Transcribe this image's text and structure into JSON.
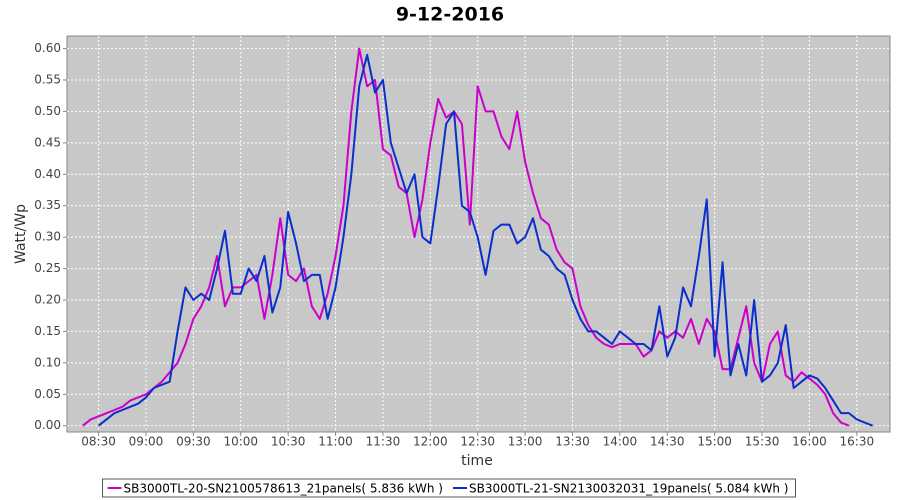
{
  "chart_data": {
    "type": "line",
    "title": "9-12-2016",
    "x_label": "time",
    "y_label": "Watt/Wp",
    "x": [
      "08:20",
      "08:25",
      "08:30",
      "08:35",
      "08:40",
      "08:45",
      "08:50",
      "08:55",
      "09:00",
      "09:05",
      "09:10",
      "09:15",
      "09:20",
      "09:25",
      "09:30",
      "09:35",
      "09:40",
      "09:45",
      "09:50",
      "09:55",
      "10:00",
      "10:05",
      "10:10",
      "10:15",
      "10:20",
      "10:25",
      "10:30",
      "10:35",
      "10:40",
      "10:45",
      "10:50",
      "10:55",
      "11:00",
      "11:05",
      "11:10",
      "11:15",
      "11:20",
      "11:25",
      "11:30",
      "11:35",
      "11:40",
      "11:45",
      "11:50",
      "11:55",
      "12:00",
      "12:05",
      "12:10",
      "12:15",
      "12:20",
      "12:25",
      "12:30",
      "12:35",
      "12:40",
      "12:45",
      "12:50",
      "12:55",
      "13:00",
      "13:05",
      "13:10",
      "13:15",
      "13:20",
      "13:25",
      "13:30",
      "13:35",
      "13:40",
      "13:45",
      "13:50",
      "13:55",
      "14:00",
      "14:05",
      "14:10",
      "14:15",
      "14:20",
      "14:25",
      "14:30",
      "14:35",
      "14:40",
      "14:45",
      "14:50",
      "14:55",
      "15:00",
      "15:05",
      "15:10",
      "15:15",
      "15:20",
      "15:25",
      "15:30",
      "15:35",
      "15:40",
      "15:45",
      "15:50",
      "15:55",
      "16:00",
      "16:05",
      "16:10",
      "16:15",
      "16:20",
      "16:25",
      "16:30",
      "16:35",
      "16:40"
    ],
    "series": [
      {
        "name": "SB3000TL-20-SN2100578613_21panels( 5.836 kWh )",
        "color": "#cc00cc",
        "values": [
          0.0,
          0.01,
          0.015,
          0.02,
          0.025,
          0.03,
          0.04,
          0.045,
          0.05,
          0.06,
          0.07,
          0.085,
          0.1,
          0.13,
          0.17,
          0.19,
          0.22,
          0.27,
          0.19,
          0.22,
          0.22,
          0.23,
          0.24,
          0.17,
          0.24,
          0.33,
          0.24,
          0.23,
          0.25,
          0.19,
          0.17,
          0.21,
          0.27,
          0.35,
          0.5,
          0.6,
          0.54,
          0.55,
          0.44,
          0.43,
          0.38,
          0.37,
          0.3,
          0.36,
          0.45,
          0.52,
          0.49,
          0.5,
          0.48,
          0.32,
          0.54,
          0.5,
          0.5,
          0.46,
          0.44,
          0.5,
          0.42,
          0.37,
          0.33,
          0.32,
          0.28,
          0.26,
          0.25,
          0.19,
          0.16,
          0.14,
          0.13,
          0.125,
          0.13,
          0.13,
          0.13,
          0.11,
          0.12,
          0.15,
          0.14,
          0.15,
          0.14,
          0.17,
          0.13,
          0.17,
          0.15,
          0.09,
          0.09,
          0.14,
          0.19,
          0.1,
          0.07,
          0.13,
          0.15,
          0.08,
          0.07,
          0.085,
          0.075,
          0.065,
          0.05,
          0.02,
          0.005,
          0.0,
          null,
          null,
          null
        ]
      },
      {
        "name": "SB3000TL-21-SN2130032031_19panels( 5.084 kWh )",
        "color": "#0a2fcc",
        "values": [
          null,
          null,
          0.0,
          0.01,
          0.02,
          0.025,
          0.03,
          0.035,
          0.045,
          0.06,
          0.065,
          0.07,
          0.15,
          0.22,
          0.2,
          0.21,
          0.2,
          0.25,
          0.31,
          0.21,
          0.21,
          0.25,
          0.23,
          0.27,
          0.18,
          0.22,
          0.34,
          0.29,
          0.23,
          0.24,
          0.24,
          0.17,
          0.22,
          0.3,
          0.4,
          0.54,
          0.59,
          0.53,
          0.55,
          0.45,
          0.41,
          0.37,
          0.4,
          0.3,
          0.29,
          0.38,
          0.48,
          0.5,
          0.35,
          0.34,
          0.3,
          0.24,
          0.31,
          0.32,
          0.32,
          0.29,
          0.3,
          0.33,
          0.28,
          0.27,
          0.25,
          0.24,
          0.2,
          0.17,
          0.15,
          0.15,
          0.14,
          0.13,
          0.15,
          0.14,
          0.13,
          0.13,
          0.12,
          0.19,
          0.11,
          0.14,
          0.22,
          0.19,
          0.27,
          0.36,
          0.11,
          0.26,
          0.08,
          0.13,
          0.08,
          0.2,
          0.07,
          0.08,
          0.1,
          0.16,
          0.06,
          0.07,
          0.08,
          0.075,
          0.06,
          0.04,
          0.02,
          0.02,
          0.01,
          0.005,
          0.0
        ]
      }
    ],
    "xlim": [
      "08:10",
      "16:51"
    ],
    "xticks": [
      "08:30",
      "09:00",
      "09:30",
      "10:00",
      "10:30",
      "11:00",
      "11:30",
      "12:00",
      "12:30",
      "13:00",
      "13:30",
      "14:00",
      "14:30",
      "15:00",
      "15:30",
      "16:00",
      "16:30"
    ],
    "ylim": [
      -0.01,
      0.62
    ],
    "yticks": [
      {
        "value": 0,
        "label": "0.00"
      },
      {
        "value": 0.05,
        "label": "0.05"
      },
      {
        "value": 0.1,
        "label": "0.10"
      },
      {
        "value": 0.15,
        "label": "0.15"
      },
      {
        "value": 0.2,
        "label": "0.20"
      },
      {
        "value": 0.25,
        "label": "0.25"
      },
      {
        "value": 0.3,
        "label": "0.30"
      },
      {
        "value": 0.35,
        "label": "0.35"
      },
      {
        "value": 0.4,
        "label": "0.40"
      },
      {
        "value": 0.45,
        "label": "0.45"
      },
      {
        "value": 0.5,
        "label": "0.50"
      },
      {
        "value": 0.55,
        "label": "0.55"
      },
      {
        "value": 0.6,
        "label": "0.60"
      }
    ],
    "grid": true,
    "legend": "bottom"
  }
}
